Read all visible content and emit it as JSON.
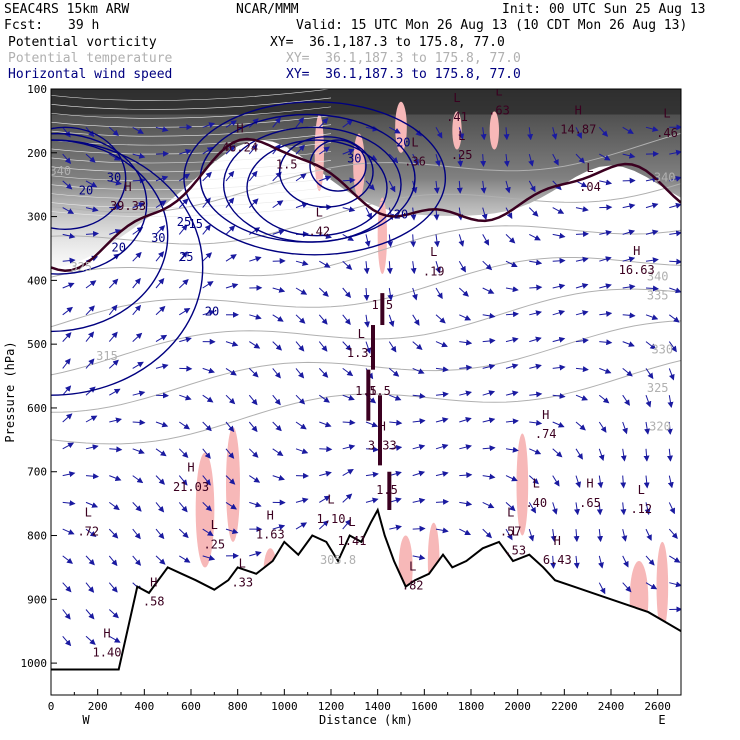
{
  "header": {
    "model": "SEAC4RS 15km ARW",
    "center": "NCAR/MMM",
    "init": "Init: 00 UTC Sun 25 Aug 13",
    "fcst_label": "Fcst:",
    "fcst_value": "39 h",
    "valid": "Valid: 15 UTC Mon 26 Aug 13 (10 CDT Mon 26 Aug 13)",
    "fields": [
      {
        "name": "Potential vorticity",
        "xy": "XY=  36.1,187.3 to 175.8, 77.0"
      },
      {
        "name": "Potential temperature",
        "xy": "XY=  36.1,187.3 to 175.8, 77.0"
      },
      {
        "name": "Horizontal wind speed",
        "xy": "XY=  36.1,187.3 to 175.8, 77.0"
      }
    ]
  },
  "colors": {
    "potential_vorticity": "#3b0020",
    "potential_temperature": "#b0b0b0",
    "wind_speed": "#000080",
    "vectors": "#1a1aa0",
    "shading_pink": "#f7b8b8",
    "terrain": "#000000"
  },
  "chart_data": {
    "type": "cross-section",
    "xlabel": "Distance (km)",
    "ylabel": "Pressure (hPa)",
    "xlim": [
      0,
      2700
    ],
    "ylim": [
      1050,
      100
    ],
    "x_ticks": [
      0,
      200,
      400,
      600,
      800,
      1000,
      1200,
      1400,
      1600,
      1800,
      2000,
      2200,
      2400,
      2600
    ],
    "y_ticks": [
      100,
      200,
      300,
      400,
      500,
      600,
      700,
      800,
      900,
      1000
    ],
    "west_label": "W",
    "east_label": "E",
    "terrain": [
      [
        0,
        1010
      ],
      [
        290,
        1010
      ],
      [
        370,
        880
      ],
      [
        420,
        890
      ],
      [
        460,
        870
      ],
      [
        500,
        850
      ],
      [
        560,
        860
      ],
      [
        620,
        870
      ],
      [
        700,
        885
      ],
      [
        760,
        870
      ],
      [
        800,
        850
      ],
      [
        880,
        860
      ],
      [
        950,
        840
      ],
      [
        1000,
        810
      ],
      [
        1060,
        830
      ],
      [
        1120,
        800
      ],
      [
        1180,
        810
      ],
      [
        1230,
        840
      ],
      [
        1280,
        800
      ],
      [
        1330,
        810
      ],
      [
        1370,
        780
      ],
      [
        1400,
        760
      ],
      [
        1430,
        800
      ],
      [
        1470,
        840
      ],
      [
        1520,
        880
      ],
      [
        1560,
        870
      ],
      [
        1620,
        860
      ],
      [
        1680,
        830
      ],
      [
        1720,
        850
      ],
      [
        1780,
        840
      ],
      [
        1850,
        820
      ],
      [
        1920,
        810
      ],
      [
        1980,
        840
      ],
      [
        2050,
        830
      ],
      [
        2110,
        850
      ],
      [
        2160,
        870
      ],
      [
        2240,
        880
      ],
      [
        2320,
        890
      ],
      [
        2400,
        900
      ],
      [
        2480,
        910
      ],
      [
        2560,
        920
      ],
      [
        2630,
        935
      ],
      [
        2700,
        950
      ]
    ],
    "wind_speed_labels": [
      {
        "x": 290,
        "p": 355,
        "text": "20"
      },
      {
        "x": 460,
        "p": 340,
        "text": "30"
      },
      {
        "x": 570,
        "p": 315,
        "text": "25"
      },
      {
        "x": 580,
        "p": 370,
        "text": "25"
      },
      {
        "x": 620,
        "p": 318,
        "text": "15"
      },
      {
        "x": 690,
        "p": 455,
        "text": "20"
      },
      {
        "x": 1300,
        "p": 215,
        "text": "30"
      },
      {
        "x": 1510,
        "p": 190,
        "text": "20"
      },
      {
        "x": 1500,
        "p": 303,
        "text": "20"
      },
      {
        "x": 270,
        "p": 245,
        "text": "30"
      },
      {
        "x": 150,
        "p": 265,
        "text": "20"
      }
    ],
    "theta_labels": [
      {
        "x": 40,
        "p": 235,
        "text": "340"
      },
      {
        "x": 130,
        "p": 385,
        "text": "325"
      },
      {
        "x": 240,
        "p": 525,
        "text": "315"
      },
      {
        "x": 2600,
        "p": 400,
        "text": "340"
      },
      {
        "x": 2600,
        "p": 430,
        "text": "335"
      },
      {
        "x": 2620,
        "p": 515,
        "text": "330"
      },
      {
        "x": 2600,
        "p": 575,
        "text": "325"
      },
      {
        "x": 2610,
        "p": 635,
        "text": "320"
      },
      {
        "x": 2630,
        "p": 245,
        "text": "340"
      },
      {
        "x": 1230,
        "p": 845,
        "text": "305.8"
      }
    ],
    "pv_contour_labels": [
      {
        "x": 1420,
        "p": 445,
        "text": "1.5"
      },
      {
        "x": 1350,
        "p": 580,
        "text": "1.5"
      },
      {
        "x": 1410,
        "p": 580,
        "text": "1.5"
      },
      {
        "x": 1440,
        "p": 735,
        "text": "1.5"
      },
      {
        "x": 1010,
        "p": 225,
        "text": "1.5"
      }
    ],
    "extrema": [
      {
        "kind": "H",
        "x": 810,
        "p": 198,
        "value": "46.24"
      },
      {
        "kind": "H",
        "x": 330,
        "p": 290,
        "value": "39.33"
      },
      {
        "kind": "L",
        "x": 1150,
        "p": 330,
        "value": ".42"
      },
      {
        "kind": "L",
        "x": 1640,
        "p": 392,
        "value": ".19"
      },
      {
        "kind": "L",
        "x": 1560,
        "p": 220,
        "value": ".36"
      },
      {
        "kind": "L",
        "x": 1760,
        "p": 210,
        "value": ".25"
      },
      {
        "kind": "L",
        "x": 1740,
        "p": 150,
        "value": ".41"
      },
      {
        "kind": "L",
        "x": 1920,
        "p": 140,
        "value": ".63"
      },
      {
        "kind": "H",
        "x": 2260,
        "p": 170,
        "value": "14.87"
      },
      {
        "kind": "L",
        "x": 2640,
        "p": 175,
        "value": ".46"
      },
      {
        "kind": "L",
        "x": 2310,
        "p": 260,
        "value": ".04"
      },
      {
        "kind": "H",
        "x": 2510,
        "p": 390,
        "value": "16.63"
      },
      {
        "kind": "L",
        "x": 1330,
        "p": 520,
        "value": "1.31"
      },
      {
        "kind": "H",
        "x": 1420,
        "p": 665,
        "value": "3.33"
      },
      {
        "kind": "H",
        "x": 2120,
        "p": 647,
        "value": ".74"
      },
      {
        "kind": "L",
        "x": 2080,
        "p": 755,
        "value": ".40"
      },
      {
        "kind": "H",
        "x": 2310,
        "p": 755,
        "value": ".65"
      },
      {
        "kind": "L",
        "x": 2530,
        "p": 765,
        "value": ".12"
      },
      {
        "kind": "H",
        "x": 600,
        "p": 730,
        "value": "21.03"
      },
      {
        "kind": "L",
        "x": 1200,
        "p": 780,
        "value": "1.10"
      },
      {
        "kind": "H",
        "x": 940,
        "p": 805,
        "value": "1.63"
      },
      {
        "kind": "L",
        "x": 1290,
        "p": 815,
        "value": "1.41"
      },
      {
        "kind": "L",
        "x": 1970,
        "p": 800,
        "value": ".57"
      },
      {
        "kind": "L",
        "x": 1990,
        "p": 830,
        "value": ".53"
      },
      {
        "kind": "H",
        "x": 2170,
        "p": 845,
        "value": "6.43"
      },
      {
        "kind": "L",
        "x": 160,
        "p": 800,
        "value": ".72"
      },
      {
        "kind": "H",
        "x": 240,
        "p": 990,
        "value": "1.40"
      },
      {
        "kind": "H",
        "x": 440,
        "p": 910,
        "value": ".58"
      },
      {
        "kind": "L",
        "x": 820,
        "p": 880,
        "value": ".33"
      },
      {
        "kind": "L",
        "x": 1550,
        "p": 885,
        "value": ".82"
      },
      {
        "kind": "L",
        "x": 700,
        "p": 820,
        "value": ".25"
      }
    ]
  }
}
